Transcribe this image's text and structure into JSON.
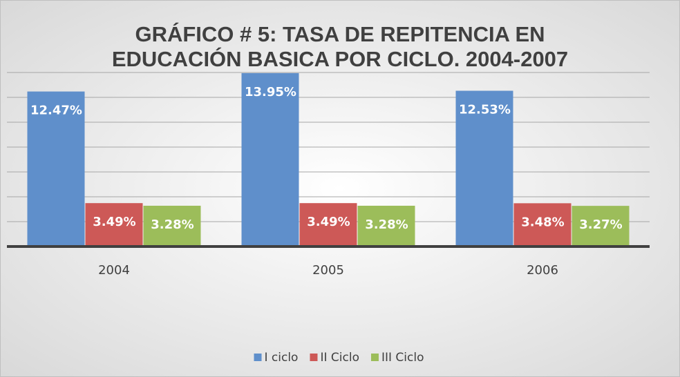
{
  "chart_data": {
    "type": "bar",
    "title": [
      "GRÁFICO # 5: TASA DE REPITENCIA EN",
      "EDUCACIÓN BASICA POR CICLO. 2004-2007"
    ],
    "categories": [
      "2004",
      "2005",
      "2006"
    ],
    "series": [
      {
        "name": "I ciclo",
        "color": "#5f8fcb",
        "values": [
          12.47,
          13.95,
          12.53
        ],
        "value_labels": [
          "12.47%",
          "13.95%",
          "12.53%"
        ]
      },
      {
        "name": "II Ciclo",
        "color": "#cd5957",
        "values": [
          3.49,
          3.49,
          3.48
        ],
        "value_labels": [
          "3.49%",
          "3.49%",
          "3.48%"
        ]
      },
      {
        "name": "III Ciclo",
        "color": "#9cbd5a",
        "values": [
          3.28,
          3.28,
          3.27
        ],
        "value_labels": [
          "3.28%",
          "3.28%",
          "3.27%"
        ]
      }
    ],
    "ylim": [
      0,
      14
    ],
    "yticks": [
      0,
      2,
      4,
      6,
      8,
      10,
      12,
      14
    ],
    "grid": true,
    "legend": "bottom"
  }
}
